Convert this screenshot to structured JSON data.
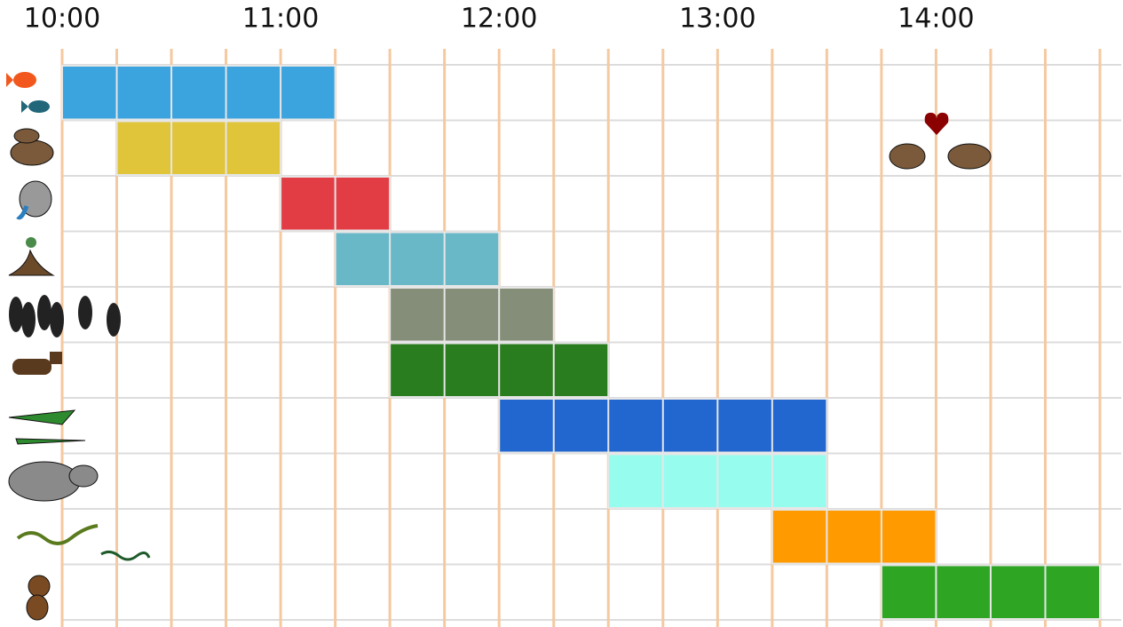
{
  "chart_data": {
    "type": "gantt",
    "xlim": [
      10,
      14.75
    ],
    "xticks": [
      {
        "value": 10,
        "label": "10:00"
      },
      {
        "value": 11,
        "label": "11:00"
      },
      {
        "value": 12,
        "label": "12:00"
      },
      {
        "value": 13,
        "label": "13:00"
      },
      {
        "value": 14,
        "label": "14:00"
      }
    ],
    "xminorticks": [
      10,
      10.25,
      10.5,
      10.75,
      11,
      11.25,
      11.5,
      11.75,
      12,
      12.25,
      12.5,
      12.75,
      13,
      13.25,
      13.5,
      13.75,
      14,
      14.25,
      14.5,
      14.75
    ],
    "grid": true,
    "tasks": [
      {
        "start": 10,
        "end": 11.25,
        "color": "#3ba3de"
      },
      {
        "start": 10.25,
        "end": 11,
        "color": "#e0c53a"
      },
      {
        "start": 11,
        "end": 11.5,
        "color": "#e23c44"
      },
      {
        "start": 11.25,
        "end": 12,
        "color": "#68b8c8"
      },
      {
        "start": 11.5,
        "end": 12.25,
        "color": "#848e78"
      },
      {
        "start": 11.5,
        "end": 12.5,
        "color": "#2a7d1f"
      },
      {
        "start": 12,
        "end": 13.5,
        "color": "#2267cf"
      },
      {
        "start": 12.5,
        "end": 13.5,
        "color": "#96fcee"
      },
      {
        "start": 13.25,
        "end": 14,
        "color": "#ff9b00"
      },
      {
        "start": 13.75,
        "end": 14.75,
        "color": "#2ea623"
      }
    ]
  }
}
